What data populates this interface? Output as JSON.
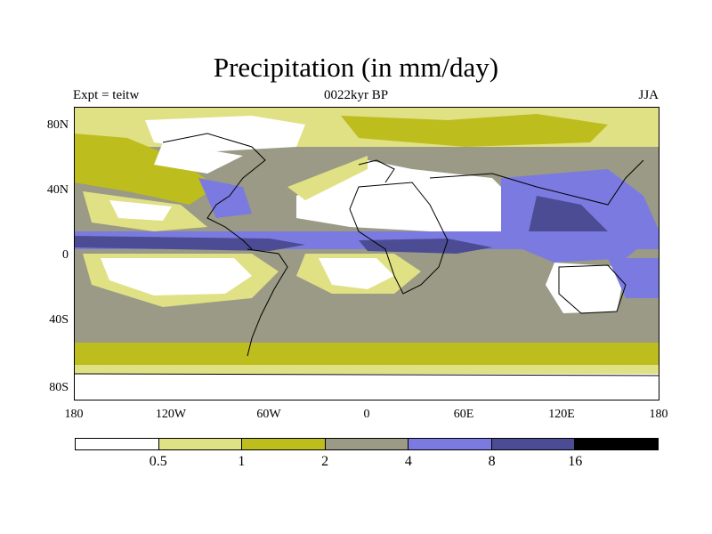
{
  "title": "Precipitation (in mm/day)",
  "subtitle_left": "Expt = teitw",
  "subtitle_center": "0022kyr BP",
  "subtitle_right": "JJA",
  "lat_ticks": [
    "80N",
    "40N",
    "0",
    "40S",
    "80S"
  ],
  "lon_ticks": [
    "180",
    "120W",
    "60W",
    "0",
    "60E",
    "120E",
    "180"
  ],
  "colorbar": {
    "levels": [
      "0.5",
      "1",
      "2",
      "4",
      "8",
      "16"
    ],
    "colors": [
      "#ffffff",
      "#e0e085",
      "#bdbd1e",
      "#9a9a86",
      "#7a7ae0",
      "#4c4c94",
      "#000000"
    ]
  },
  "colors": {
    "coast": "#000000",
    "dry": "#ffffff",
    "light": "#e0e085",
    "olive": "#bdbd1e",
    "gray": "#9a9a86",
    "blue": "#7a7ae0",
    "navy": "#4c4c94"
  }
}
